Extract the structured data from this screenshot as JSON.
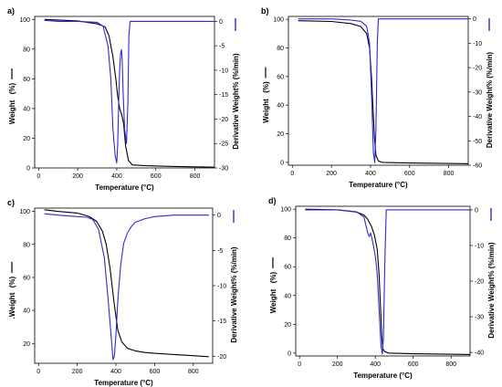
{
  "chart_data": [
    {
      "type": "line",
      "panel_label": "a)",
      "xlabel": "Temperature (°C)",
      "ylabel": "Weight",
      "ylabel_unit": "(%)",
      "y2label": "Derivative Weight% (%/min)",
      "xlim": [
        -20,
        900
      ],
      "ylim": [
        0,
        102
      ],
      "y2lim": [
        -30,
        1
      ],
      "x_ticks": [
        0,
        200,
        400,
        600,
        800
      ],
      "y_ticks": [
        0,
        20,
        40,
        60,
        80,
        100
      ],
      "y2_ticks": [
        0,
        -5,
        -10,
        -15,
        -20,
        -25,
        -30
      ],
      "series": [
        {
          "axis": "left",
          "color": "#000000",
          "x": [
            30,
            200,
            300,
            340,
            360,
            380,
            395,
            405,
            415,
            425,
            435,
            445,
            460,
            480,
            550,
            700,
            900
          ],
          "y": [
            100,
            99,
            97,
            95,
            89,
            75,
            60,
            48,
            40,
            36,
            30,
            15,
            5,
            2,
            1.5,
            1,
            0.5
          ]
        },
        {
          "axis": "right",
          "color": "#2b2bd6",
          "x": [
            30,
            100,
            200,
            300,
            330,
            355,
            370,
            380,
            392,
            400,
            405,
            410,
            415,
            420,
            424,
            428,
            432,
            440,
            450,
            457,
            462,
            468,
            500,
            600,
            700,
            800,
            900
          ],
          "y": [
            0.2,
            0,
            0,
            -0.2,
            -1,
            -5,
            -12,
            -22,
            -27.5,
            -29,
            -25,
            -16,
            -10,
            -6.5,
            -5.8,
            -8,
            -14,
            -22,
            -25,
            -17,
            -3,
            0,
            0,
            0,
            0,
            0,
            0
          ]
        }
      ]
    },
    {
      "type": "line",
      "panel_label": "b)",
      "xlabel": "Temperature (°C)",
      "ylabel": "Weight",
      "ylabel_unit": "(%)",
      "y2label": "Derivative Weight% (%/min)",
      "xlim": [
        -20,
        900
      ],
      "ylim": [
        -2,
        102
      ],
      "y2lim": [
        -60,
        1
      ],
      "x_ticks": [
        0,
        200,
        400,
        600,
        800
      ],
      "y_ticks": [
        0,
        20,
        40,
        60,
        80,
        100
      ],
      "y2_ticks": [
        0,
        -10,
        -20,
        -30,
        -40,
        -50,
        -60
      ],
      "series": [
        {
          "axis": "left",
          "color": "#000000",
          "x": [
            30,
            200,
            300,
            350,
            380,
            395,
            405,
            412,
            420,
            428,
            440,
            460,
            600,
            900
          ],
          "y": [
            99,
            98.5,
            97,
            95,
            90,
            80,
            60,
            40,
            18,
            5,
            1,
            0,
            -0.5,
            -1
          ]
        },
        {
          "axis": "right",
          "color": "#2b2bd6",
          "x": [
            30,
            200,
            300,
            350,
            380,
            395,
            405,
            415,
            422,
            428,
            435,
            440,
            450,
            600,
            900
          ],
          "y": [
            0,
            0,
            -0.5,
            -1,
            -3,
            -10,
            -30,
            -55,
            -59,
            -45,
            -10,
            0,
            0,
            0,
            0
          ]
        }
      ]
    },
    {
      "type": "line",
      "panel_label": "c)",
      "xlabel": "Temperature (°C)",
      "ylabel": ".Weight",
      "ylabel_unit": "(%)",
      "y2label": "Derivative Weight% (%/min)",
      "xlim": [
        -20,
        900
      ],
      "ylim": [
        8,
        102
      ],
      "y2lim": [
        -21,
        1
      ],
      "x_ticks": [
        0,
        200,
        400,
        600,
        800
      ],
      "y_ticks": [
        20,
        40,
        60,
        80,
        100
      ],
      "y2_ticks": [
        0,
        -5,
        -10,
        -15,
        -20
      ],
      "series": [
        {
          "axis": "left",
          "color": "#000000",
          "x": [
            30,
            100,
            200,
            260,
            300,
            330,
            350,
            370,
            390,
            410,
            430,
            460,
            500,
            550,
            600,
            700,
            800,
            880
          ],
          "y": [
            101,
            100,
            99,
            97,
            94,
            88,
            80,
            65,
            45,
            28,
            21,
            17,
            15.5,
            14.5,
            14,
            13.3,
            12.6,
            12
          ]
        },
        {
          "axis": "right",
          "color": "#2b2bd6",
          "x": [
            30,
            100,
            200,
            250,
            280,
            310,
            340,
            360,
            375,
            385,
            392,
            400,
            410,
            425,
            440,
            460,
            480,
            500,
            550,
            600,
            700,
            800,
            880
          ],
          "y": [
            0.2,
            0,
            -0.2,
            -0.3,
            -0.6,
            -2,
            -6,
            -12,
            -17,
            -20.5,
            -20,
            -17,
            -12,
            -7,
            -4,
            -2.5,
            -1.6,
            -1,
            -0.5,
            -0.2,
            0,
            0,
            0
          ]
        }
      ]
    },
    {
      "type": "line",
      "panel_label": "d)",
      "xlabel": "Temperature (°C)",
      "ylabel": "Weight",
      "ylabel_unit": "(%)",
      "y2label": "Derivative Weight% (%/min)",
      "xlim": [
        -20,
        900
      ],
      "ylim": [
        -2,
        102
      ],
      "y2lim": [
        -41,
        1
      ],
      "x_ticks": [
        0,
        200,
        400,
        600,
        800
      ],
      "y_ticks": [
        0,
        20,
        40,
        60,
        80,
        100
      ],
      "y2_ticks": [
        0,
        -10,
        -20,
        -30,
        -40
      ],
      "series": [
        {
          "axis": "left",
          "color": "#000000",
          "x": [
            30,
            200,
            300,
            340,
            360,
            380,
            395,
            410,
            420,
            428,
            435,
            440,
            450,
            470,
            600,
            900
          ],
          "y": [
            100,
            99.5,
            98,
            96,
            93,
            88,
            82,
            72,
            55,
            30,
            10,
            3,
            1,
            0,
            -0.5,
            -1
          ]
        },
        {
          "axis": "right",
          "color": "#2b2bd6",
          "x": [
            30,
            200,
            300,
            340,
            360,
            368,
            375,
            382,
            390,
            400,
            410,
            420,
            430,
            437,
            443,
            450,
            458,
            470,
            600,
            900
          ],
          "y": [
            0,
            0,
            -0.5,
            -2,
            -6.5,
            -7.5,
            -6.5,
            -8,
            -10,
            -13,
            -18,
            -28,
            -38,
            -40.5,
            -36,
            -15,
            0,
            0,
            0,
            0
          ]
        }
      ]
    }
  ]
}
